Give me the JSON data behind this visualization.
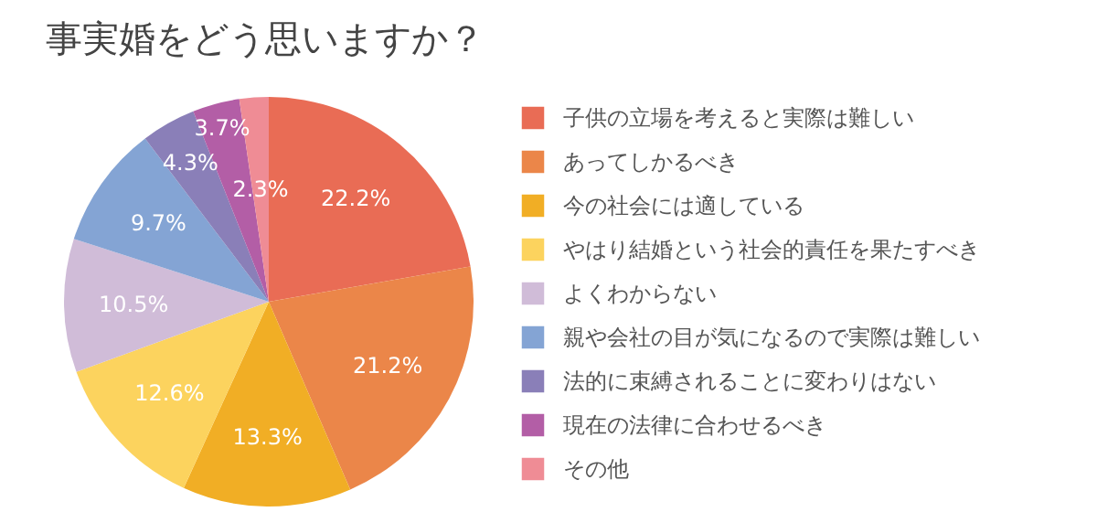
{
  "chart_data": {
    "type": "pie",
    "title": "事実婚をどう思いますか？",
    "categories": [
      "子供の立場を考えると実際は難しい",
      "あってしかるべき",
      "今の社会には適している",
      "やはり結婚という社会的責任を果たすべき",
      "よくわからない",
      "親や会社の目が気になるので実際は難しい",
      "法的に束縛されることに変わりはない",
      "現在の法律に合わせるべき",
      "その他"
    ],
    "values": [
      22.2,
      21.2,
      13.3,
      12.6,
      10.5,
      9.7,
      4.3,
      3.7,
      2.3
    ],
    "value_labels": [
      "22.2%",
      "21.2%",
      "13.3%",
      "12.6%",
      "10.5%",
      "9.7%",
      "4.3%",
      "3.7%",
      "2.3%"
    ],
    "colors": [
      "#e96c55",
      "#eb8649",
      "#f1ae25",
      "#fcd35e",
      "#d0bcd8",
      "#84a4d4",
      "#8a7fb8",
      "#b35ea6",
      "#ef8c95"
    ],
    "legend": "right"
  }
}
